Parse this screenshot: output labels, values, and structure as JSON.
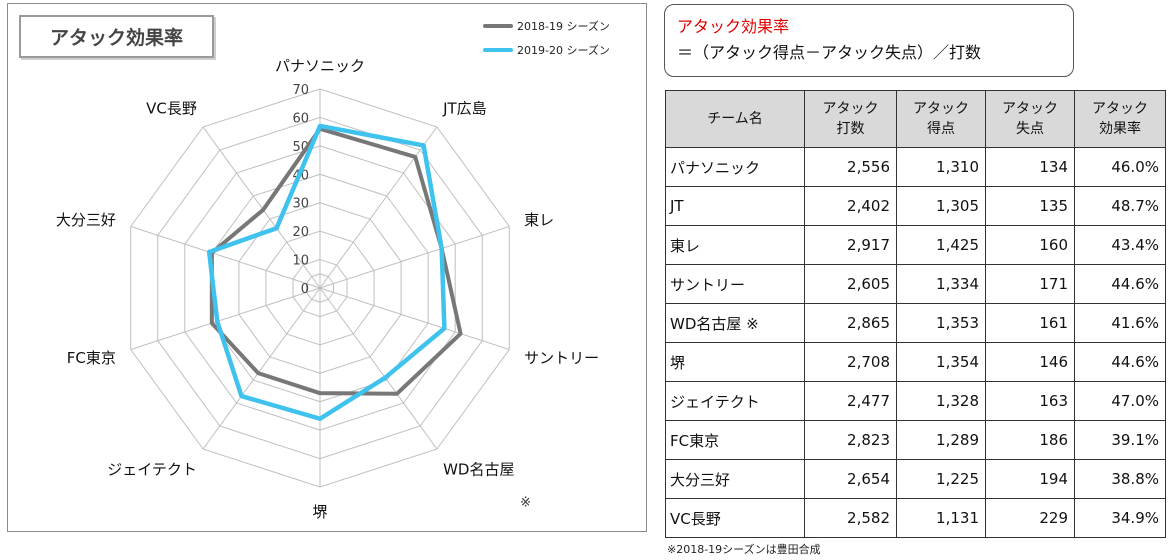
{
  "chart_data": {
    "type": "radar",
    "title": "アタック効果率",
    "categories": [
      "パナソニック",
      "JT広島",
      "東レ",
      "サントリー",
      "WD名古屋",
      "堺",
      "ジェイテクト",
      "FC東京",
      "大分三好",
      "VC長野"
    ],
    "category_note": {
      "WD名古屋": "※"
    },
    "rlim": [
      0,
      70
    ],
    "ticks": [
      0,
      10,
      20,
      30,
      40,
      50,
      60,
      70
    ],
    "grid": true,
    "legend_position": "top-right",
    "series": [
      {
        "name": "2018-19 シーズン",
        "color": "#777777",
        "values": [
          56,
          57,
          45,
          52,
          46,
          37,
          37,
          40,
          40,
          34
        ]
      },
      {
        "name": "2019-20 シーズン",
        "color": "#3fc3ee",
        "values": [
          57,
          62,
          45,
          46,
          39,
          46,
          47,
          38,
          41,
          26
        ]
      }
    ]
  },
  "formula": {
    "title": "アタック効果率",
    "expression": "＝（アタック得点－アタック失点）／打数"
  },
  "table": {
    "headers": [
      {
        "line1": "チーム名",
        "line2": ""
      },
      {
        "line1": "アタック",
        "line2": "打数"
      },
      {
        "line1": "アタック",
        "line2": "得点"
      },
      {
        "line1": "アタック",
        "line2": "失点"
      },
      {
        "line1": "アタック",
        "line2": "効果率"
      }
    ],
    "rows": [
      [
        "パナソニック",
        "2,556",
        "1,310",
        "134",
        "46.0%"
      ],
      [
        "JT",
        "2,402",
        "1,305",
        "135",
        "48.7%"
      ],
      [
        "東レ",
        "2,917",
        "1,425",
        "160",
        "43.4%"
      ],
      [
        "サントリー",
        "2,605",
        "1,334",
        "171",
        "44.6%"
      ],
      [
        "WD名古屋 ※",
        "2,865",
        "1,353",
        "161",
        "41.6%"
      ],
      [
        "堺",
        "2,708",
        "1,354",
        "146",
        "44.6%"
      ],
      [
        "ジェイテクト",
        "2,477",
        "1,328",
        "163",
        "47.0%"
      ],
      [
        "FC東京",
        "2,823",
        "1,289",
        "186",
        "39.1%"
      ],
      [
        "大分三好",
        "2,654",
        "1,225",
        "194",
        "38.8%"
      ],
      [
        "VC長野",
        "2,582",
        "1,131",
        "229",
        "34.9%"
      ]
    ]
  },
  "footnote": "※2018-19シーズンは豊田合成"
}
